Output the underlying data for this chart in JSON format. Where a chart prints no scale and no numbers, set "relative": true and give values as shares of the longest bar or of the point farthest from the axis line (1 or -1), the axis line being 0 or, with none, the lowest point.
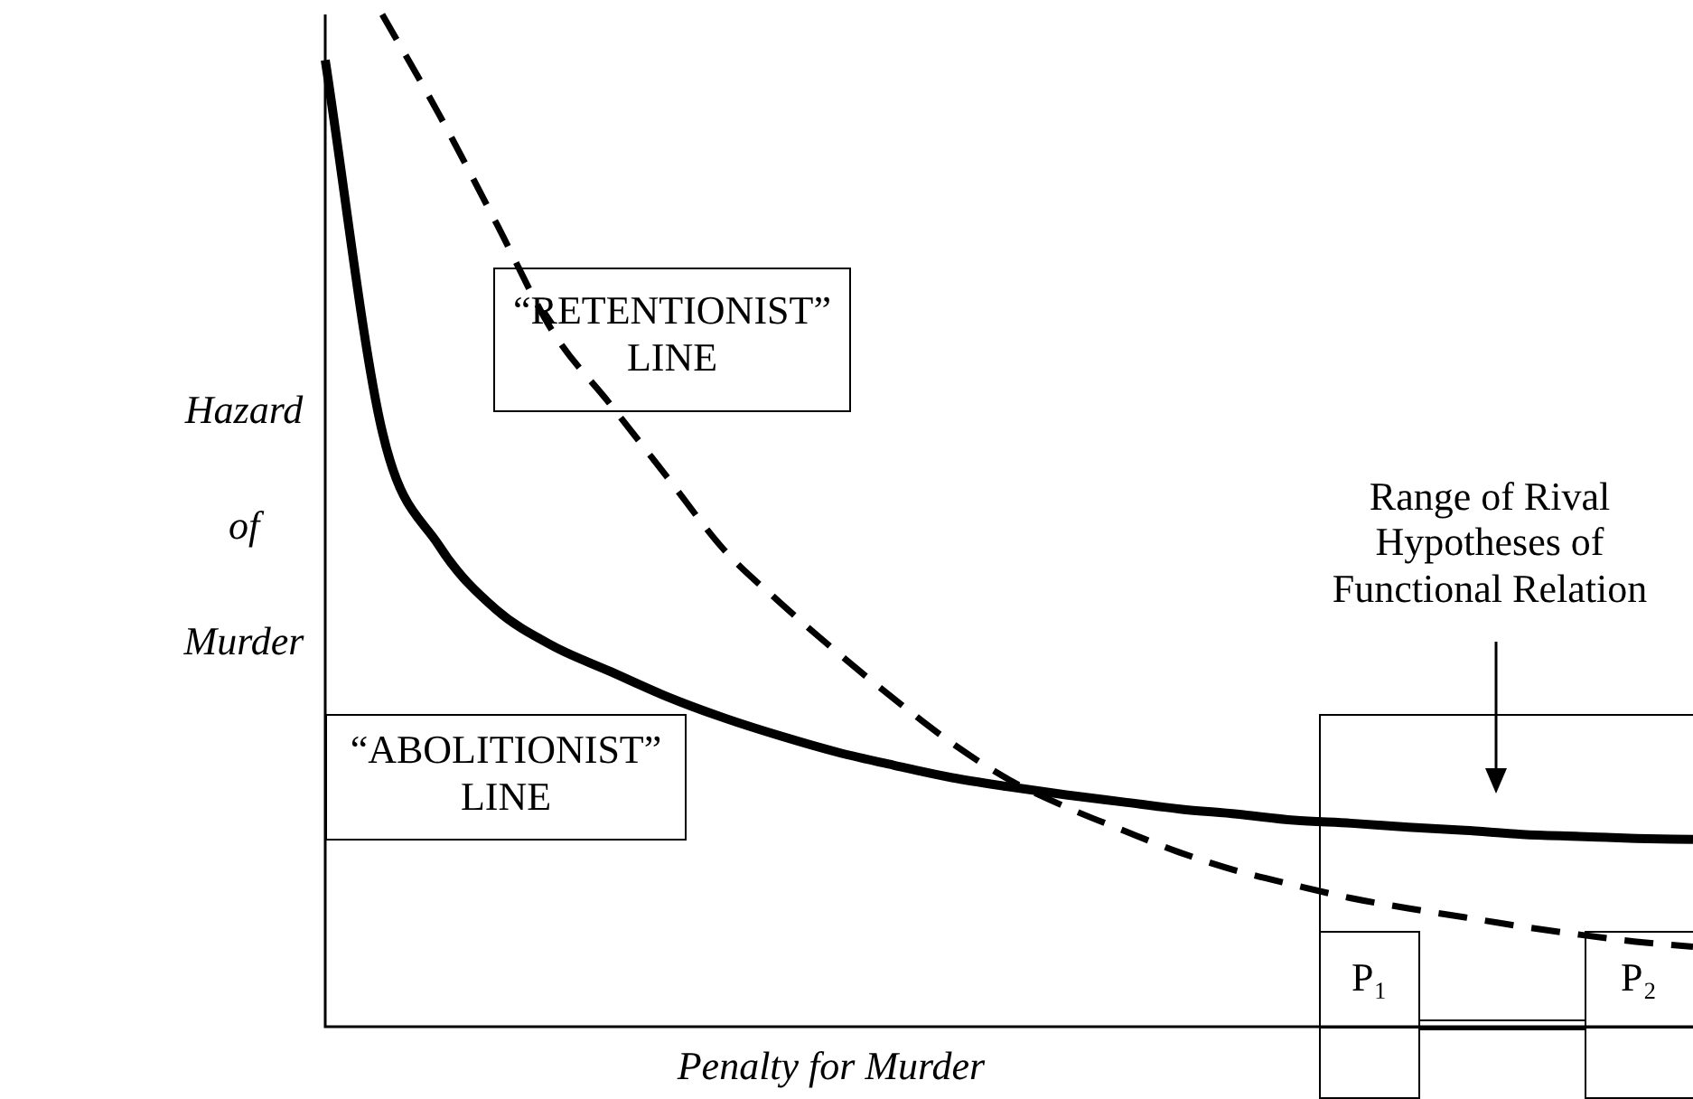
{
  "chart_data": {
    "type": "line",
    "relative": true,
    "legend": false,
    "marker": "none",
    "xlabel": "Penalty for Murder",
    "ylabel": "Hazard of Murder",
    "categories": [
      null,
      null,
      null,
      null,
      null,
      null,
      null,
      null,
      null,
      null,
      null,
      null,
      null,
      null,
      null,
      null,
      null,
      null,
      null,
      null,
      null,
      null,
      null,
      null,
      null
    ],
    "series": [
      {
        "name": "“RETENTIONIST” LINE",
        "color": "#000000",
        "line_style": "dashed",
        "values": [
          null,
          1,
          0.901,
          0.794,
          0.686,
          0.615,
          0.543,
          0.471,
          0.418,
          0.369,
          0.323,
          0.28,
          0.244,
          0.217,
          0.194,
          0.172,
          0.154,
          0.14,
          0.127,
          0.117,
          0.108,
          0.099,
          0.091,
          0.084,
          0.079
        ]
      },
      {
        "name": "“ABOLITIONIST” LINE",
        "color": "#000000",
        "line_style": "solid",
        "values": [
          0.955,
          0.588,
          0.475,
          0.412,
          0.376,
          0.351,
          0.326,
          0.305,
          0.287,
          0.271,
          0.258,
          0.246,
          0.237,
          0.229,
          0.222,
          0.215,
          0.21,
          0.204,
          0.201,
          0.197,
          0.194,
          0.19,
          0.188,
          0.186,
          0.185
        ]
      }
    ],
    "annotations": [
      "Range of Rival Hypotheses of Functional Relation",
      "P₁",
      "P₂"
    ]
  }
}
